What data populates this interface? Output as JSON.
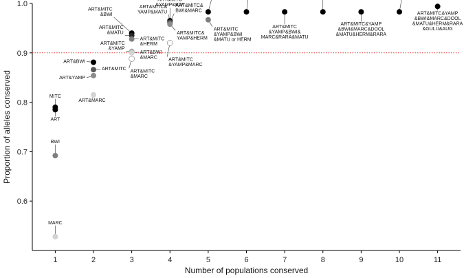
{
  "chart_data": {
    "type": "scatter",
    "title": "",
    "xlabel": "Number of populations conserved",
    "ylabel": "Proportion of alleles conserved",
    "xlim": [
      0.4,
      11.6
    ],
    "ylim": [
      0.5,
      1.0
    ],
    "xticks": [
      "1",
      "2",
      "3",
      "4",
      "5",
      "6",
      "7",
      "8",
      "9",
      "10",
      "11"
    ],
    "yticks": [
      "0.6",
      "0.7",
      "0.8",
      "0.9",
      "1.0"
    ],
    "reference_line": {
      "y": 0.9,
      "color": "#e03b3b",
      "style": "dotted"
    },
    "points": [
      {
        "x": 1,
        "y": 0.79,
        "label": "MITC",
        "fill": "#000000"
      },
      {
        "x": 1,
        "y": 0.785,
        "label": "ART",
        "fill": "#000000"
      },
      {
        "x": 1,
        "y": 0.692,
        "label": "BWI",
        "fill": "#7f7f7f"
      },
      {
        "x": 1,
        "y": 0.528,
        "label": "MARC",
        "fill": "#d3d3d3"
      },
      {
        "x": 2,
        "y": 0.881,
        "label": "ART&BWI",
        "fill": "#000000"
      },
      {
        "x": 2,
        "y": 0.866,
        "label": "ART&MITC",
        "fill": "#595959"
      },
      {
        "x": 2,
        "y": 0.854,
        "label": "ART&YAMP",
        "fill": "#8c8c8c"
      },
      {
        "x": 2,
        "y": 0.815,
        "label": "ART&MARC",
        "fill": "#d3d3d3"
      },
      {
        "x": 3,
        "y": 0.94,
        "label": "ART&MITC&BWI",
        "fill": "#000000"
      },
      {
        "x": 3,
        "y": 0.935,
        "label": "ART&MITC&MATU",
        "fill": "#262626"
      },
      {
        "x": 3,
        "y": 0.928,
        "label": "ART&MITC&HERM",
        "fill": "#7f7f7f"
      },
      {
        "x": 3,
        "y": 0.903,
        "label": "ART&MITC&YAMP",
        "fill": "#a6a6a6"
      },
      {
        "x": 3,
        "y": 0.9,
        "label": "ART&BWI&MARC",
        "fill": "#d3d3d3"
      },
      {
        "x": 3,
        "y": 0.888,
        "label": "ART&MITC&MARC",
        "fill": "#ffffff"
      },
      {
        "x": 4,
        "y": 0.965,
        "label": "ART&MITC&YAMP&BWI",
        "fill": "#000000"
      },
      {
        "x": 4,
        "y": 0.962,
        "label": "ART&MITC&YAMP&MATU",
        "fill": "#404040"
      },
      {
        "x": 4,
        "y": 0.96,
        "label": "ART&MITC&BWI&MARC",
        "fill": "#595959"
      },
      {
        "x": 4,
        "y": 0.958,
        "label": "ART&MITC&YAMP&HERM",
        "fill": "#8c8c8c"
      },
      {
        "x": 4,
        "y": 0.92,
        "label": "ART&MITC&YAMP&MARC",
        "fill": "#ffffff"
      },
      {
        "x": 5,
        "y": 0.983,
        "label": "ART&MITC&YAMP&BWI&MARC or RARA",
        "fill": "#000000"
      },
      {
        "x": 5,
        "y": 0.967,
        "label": "ART&MITC&YAMP&BWI&MATU or HERM",
        "fill": "#7f7f7f"
      },
      {
        "x": 6,
        "y": 0.983,
        "label": "ART&MITC&YAMP&BWI&MARC&RARA",
        "fill": "#000000"
      },
      {
        "x": 7,
        "y": 0.983,
        "label": "ART&MITC&YAMP&BWI&MARC&RARA&MATU",
        "fill": "#000000"
      },
      {
        "x": 8,
        "y": 0.983,
        "label": "ART&MITC&YAMP&BWI&MARC&DOOL&MATU&HERM",
        "fill": "#000000"
      },
      {
        "x": 9,
        "y": 0.983,
        "label": "ART&MITC&YAMP&BWI&MARC&DOOL&MATU&HERM&RARA",
        "fill": "#000000"
      },
      {
        "x": 10,
        "y": 0.983,
        "label": "ART&MITC&YAMP&BWI&MARC&DOOL&MATU&HERM&RARA&GULU",
        "fill": "#000000"
      },
      {
        "x": 11,
        "y": 0.994,
        "label": "ART&MITC&YAMP&BWI&MARC&DOOL&MATU&HERM&RARA&GULU&AUG",
        "fill": "#000000"
      }
    ],
    "point_labels": [
      {
        "point": 0,
        "lines": [
          "MITC"
        ],
        "anchor": "middle",
        "dx": 0,
        "dy": -14,
        "leader": true
      },
      {
        "point": 1,
        "lines": [
          "ART"
        ],
        "anchor": "middle",
        "dx": 0,
        "dy": 16,
        "leader": true
      },
      {
        "point": 2,
        "lines": [
          "BWI"
        ],
        "anchor": "middle",
        "dx": 0,
        "dy": -18,
        "leader": true
      },
      {
        "point": 3,
        "lines": [
          "MARC"
        ],
        "anchor": "middle",
        "dx": 0,
        "dy": -18,
        "leader": true
      },
      {
        "point": 4,
        "lines": [
          "ART&BWI"
        ],
        "anchor": "end",
        "dx": -12,
        "dy": 1,
        "leader": true
      },
      {
        "point": 5,
        "lines": [
          "ART&MITC"
        ],
        "anchor": "start",
        "dx": 12,
        "dy": 1,
        "leader": true
      },
      {
        "point": 6,
        "lines": [
          "ART&YAMP"
        ],
        "anchor": "end",
        "dx": -12,
        "dy": 5,
        "leader": true
      },
      {
        "point": 7,
        "lines": [
          "ART&MARC"
        ],
        "anchor": "middle",
        "dx": -2,
        "dy": 10,
        "leader": true
      },
      {
        "point": 8,
        "lines": [
          "ART&MITC",
          "&BWI"
        ],
        "anchor": "end",
        "dx": -28,
        "dy": -25,
        "leader": true
      },
      {
        "point": 9,
        "lines": [
          "ART&MITC",
          "&MATU"
        ],
        "anchor": "end",
        "dx": -12,
        "dy": -2,
        "leader": true
      },
      {
        "point": 10,
        "lines": [
          "ART&MITC",
          "&HERM"
        ],
        "anchor": "start",
        "dx": 12,
        "dy": 2,
        "leader": true
      },
      {
        "point": 11,
        "lines": [
          "ART&MITC",
          "&YAMP"
        ],
        "anchor": "end",
        "dx": -10,
        "dy": -2,
        "leader": true
      },
      {
        "point": 12,
        "lines": [
          "ART&BWI",
          "&MARC"
        ],
        "anchor": "start",
        "dx": 12,
        "dy": 1,
        "leader": true
      },
      {
        "point": 13,
        "lines": [
          "ART&MITC",
          "&MARC"
        ],
        "anchor": "start",
        "dx": -2,
        "dy": 20,
        "leader": true
      },
      {
        "point": 14,
        "lines": [
          "ART&MITC",
          "&YAMP&BWI"
        ],
        "anchor": "middle",
        "dx": 0,
        "dy": -21,
        "leader": true
      },
      {
        "point": 15,
        "lines": [
          "ART&MITC&",
          "YAMP&MATU"
        ],
        "anchor": "end",
        "dx": -4,
        "dy": -13,
        "leader": true
      },
      {
        "point": 16,
        "lines": [
          "ART&MITC&",
          "BWI&MARC"
        ],
        "anchor": "start",
        "dx": 8,
        "dy": -16,
        "leader": true
      },
      {
        "point": 17,
        "lines": [
          "ART&MITC&",
          "YAMP&HERM"
        ],
        "anchor": "start",
        "dx": 10,
        "dy": 15,
        "leader": true
      },
      {
        "point": 18,
        "lines": [
          "ART&MITC",
          "&YAMP&MARC"
        ],
        "anchor": "start",
        "dx": -2,
        "dy": 26,
        "leader": true
      },
      {
        "point": 19,
        "lines": [
          "ART&MITC",
          "&YAMP&BWI",
          "&MARC or RARA"
        ],
        "anchor": "start",
        "dx": 10,
        "dy": -32,
        "leader": true
      },
      {
        "point": 20,
        "lines": [
          "ART&MITC",
          "&YAMP&BWI",
          "&MATU or HERM"
        ],
        "anchor": "start",
        "dx": 8,
        "dy": 16,
        "leader": true
      },
      {
        "point": 21,
        "lines": [
          "ART&MITC",
          "&YAMP&BWI",
          "&MARC&RARA"
        ],
        "anchor": "start",
        "dx": 6,
        "dy": -34,
        "leader": true
      },
      {
        "point": 22,
        "lines": [
          "ART&MITC",
          "&YAMP&BWI&",
          "MARC&RARA&MATU"
        ],
        "anchor": "middle",
        "dx": 0,
        "dy": 24,
        "leader": true
      },
      {
        "point": 23,
        "lines": [
          "ART&MITC&YAMP",
          "&BWI&MARC&DOOL",
          "&MATU&HERM"
        ],
        "anchor": "middle",
        "dx": 0,
        "dy": -34,
        "leader": true
      },
      {
        "point": 24,
        "lines": [
          "ART&MITC&YAMP",
          "&BWI&MARC&DOOL",
          "&MATU&HERM&RARA"
        ],
        "anchor": "middle",
        "dx": 0,
        "dy": 20,
        "leader": true
      },
      {
        "point": 25,
        "lines": [
          "ART&MITC&YAMP&",
          "BWI&MARC&DOOL&",
          "MATU&HERM&RARA&GULU"
        ],
        "anchor": "middle",
        "dx": 6,
        "dy": -35,
        "leader": true
      },
      {
        "point": 26,
        "lines": [
          "ART&MITC&YAMP",
          "&BWI&MARC&DOOL",
          "&MATU&HERM&RARA",
          "&GULU&AUG"
        ],
        "anchor": "middle",
        "dx": 0,
        "dy": 12,
        "leader": true
      }
    ],
    "grid": false,
    "legend": "none"
  }
}
